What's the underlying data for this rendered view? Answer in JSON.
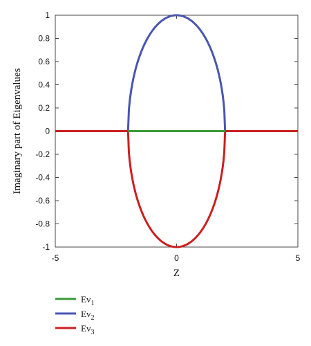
{
  "chart_data": {
    "type": "line",
    "title": "",
    "xlabel": "Z",
    "ylabel": "Imaginary part of Eigenvalues",
    "xlim": [
      -5,
      5
    ],
    "ylim": [
      -1,
      1
    ],
    "x_ticks": [
      -5,
      0,
      5
    ],
    "y_ticks": [
      -1,
      -0.8,
      -0.6,
      -0.4,
      -0.2,
      0,
      0.2,
      0.4,
      0.6,
      0.8,
      1
    ],
    "grid": false,
    "legend_position": "below",
    "series": [
      {
        "name": "Ev1",
        "label_base": "Ev",
        "label_sub": "1",
        "color": "#3a9a3a",
        "points": [
          [
            -2,
            0
          ],
          [
            2,
            0
          ]
        ]
      },
      {
        "name": "Ev2",
        "label_base": "Ev",
        "label_sub": "2",
        "color": "#4a55b0",
        "curve": "sqrt(1 - z^2/4) for |z| <= 2"
      },
      {
        "name": "Ev3",
        "label_base": "Ev",
        "label_sub": "3",
        "color": "#cc1f1f",
        "curve": "-sqrt(1 - z^2/4) for |z| <= 2; 0 for |z| > 2"
      }
    ]
  }
}
